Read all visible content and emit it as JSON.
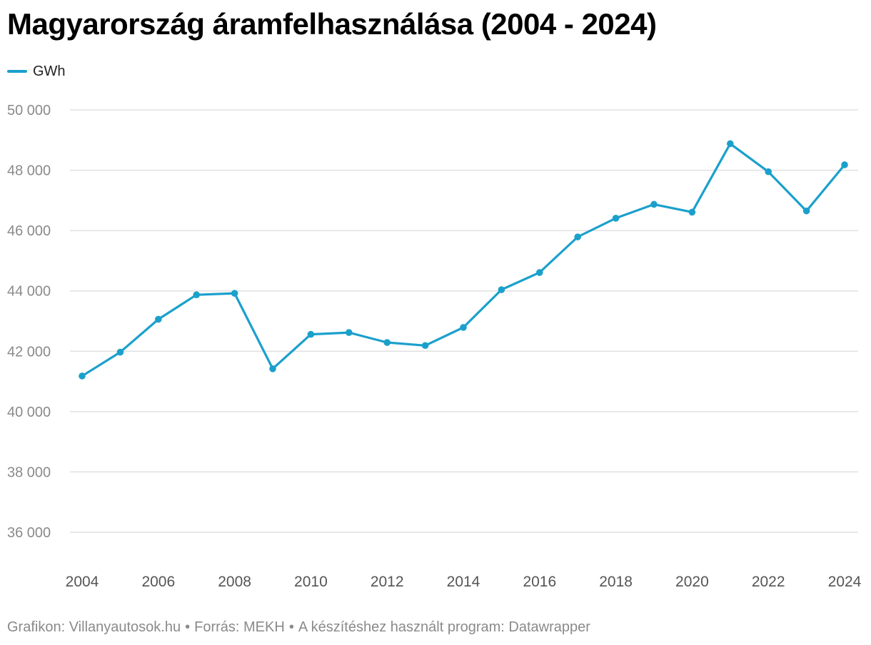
{
  "title": "Magyarország áramfelhasználása (2004 - 2024)",
  "legend": {
    "label": "GWh",
    "color": "#1ba0cc"
  },
  "footer": {
    "graph": "Grafikon: Villanyautosok.hu",
    "source": "Forrás: MEKH",
    "program": "A készítéshez használt program: Datawrapper",
    "separator": "•"
  },
  "chart_data": {
    "type": "line",
    "title": "Magyarország áramfelhasználása (2004 - 2024)",
    "xlabel": "",
    "ylabel": "",
    "x": [
      2004,
      2005,
      2006,
      2007,
      2008,
      2009,
      2010,
      2011,
      2012,
      2013,
      2014,
      2015,
      2016,
      2017,
      2018,
      2019,
      2020,
      2021,
      2022,
      2023,
      2024
    ],
    "series": [
      {
        "name": "GWh",
        "color": "#1ba0cc",
        "values": [
          41180,
          41970,
          43060,
          43870,
          43920,
          41420,
          42560,
          42620,
          42290,
          42190,
          42790,
          44040,
          44610,
          45790,
          46410,
          46870,
          46610,
          48880,
          47950,
          46650,
          48180
        ]
      }
    ],
    "ylim": [
      35000,
      50000
    ],
    "yticks": [
      36000,
      38000,
      40000,
      42000,
      44000,
      46000,
      48000,
      50000
    ],
    "ytick_labels": [
      "36 000",
      "38 000",
      "40 000",
      "42 000",
      "44 000",
      "46 000",
      "48 000",
      "50 000"
    ],
    "xlim": [
      2004,
      2024
    ],
    "xticks": [
      2004,
      2006,
      2008,
      2010,
      2012,
      2014,
      2016,
      2018,
      2020,
      2022,
      2024
    ],
    "xtick_labels": [
      "2004",
      "2006",
      "2008",
      "2010",
      "2012",
      "2014",
      "2016",
      "2018",
      "2020",
      "2022",
      "2024"
    ],
    "grid": true,
    "legend_position": "top-left",
    "colors": {
      "grid": "#e0e0e0",
      "tick_text": "#8a8a8a"
    }
  }
}
